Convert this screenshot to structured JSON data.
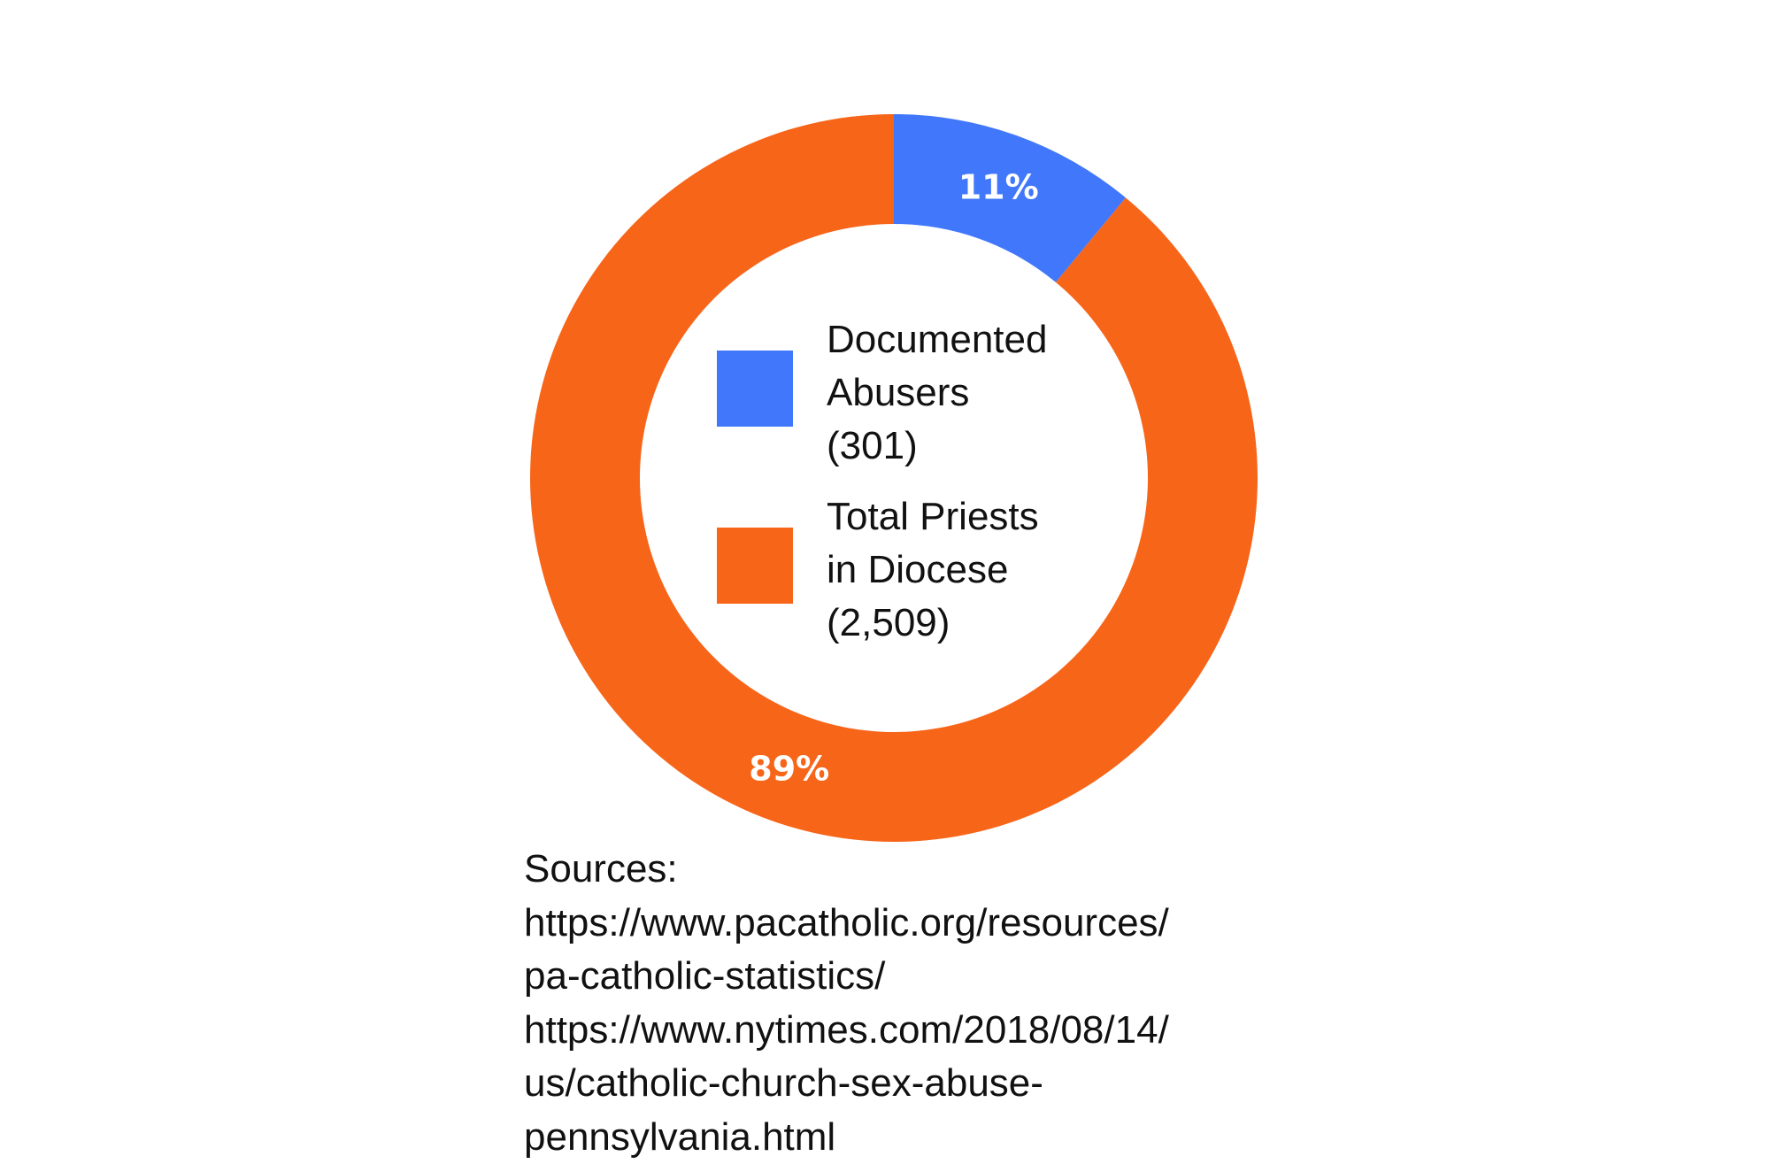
{
  "chart_data": {
    "type": "pie",
    "variant": "donut",
    "title": "",
    "slices": [
      {
        "name": "Documented Abusers",
        "count_label": "(301)",
        "percent": 11,
        "percent_label": "11%",
        "color": "#4178fb"
      },
      {
        "name": "Total Priests in Diocese",
        "count_label": "(2,509)",
        "percent": 89,
        "percent_label": "89%",
        "color": "#f76519"
      }
    ],
    "legend": {
      "placement": "center",
      "items": [
        {
          "lines": [
            "Documented",
            "Abusers",
            "(301)"
          ],
          "color": "#4178fb"
        },
        {
          "lines": [
            "Total Priests",
            "in Diocese",
            "(2,509)"
          ],
          "color": "#f76519"
        }
      ]
    }
  },
  "sources": {
    "lines": [
      "Sources:",
      "https://www.pacatholic.org/resources/",
      "pa-catholic-statistics/",
      "https://www.nytimes.com/2018/08/14/",
      "us/catholic-church-sex-abuse-",
      "pennsylvania.html"
    ]
  }
}
